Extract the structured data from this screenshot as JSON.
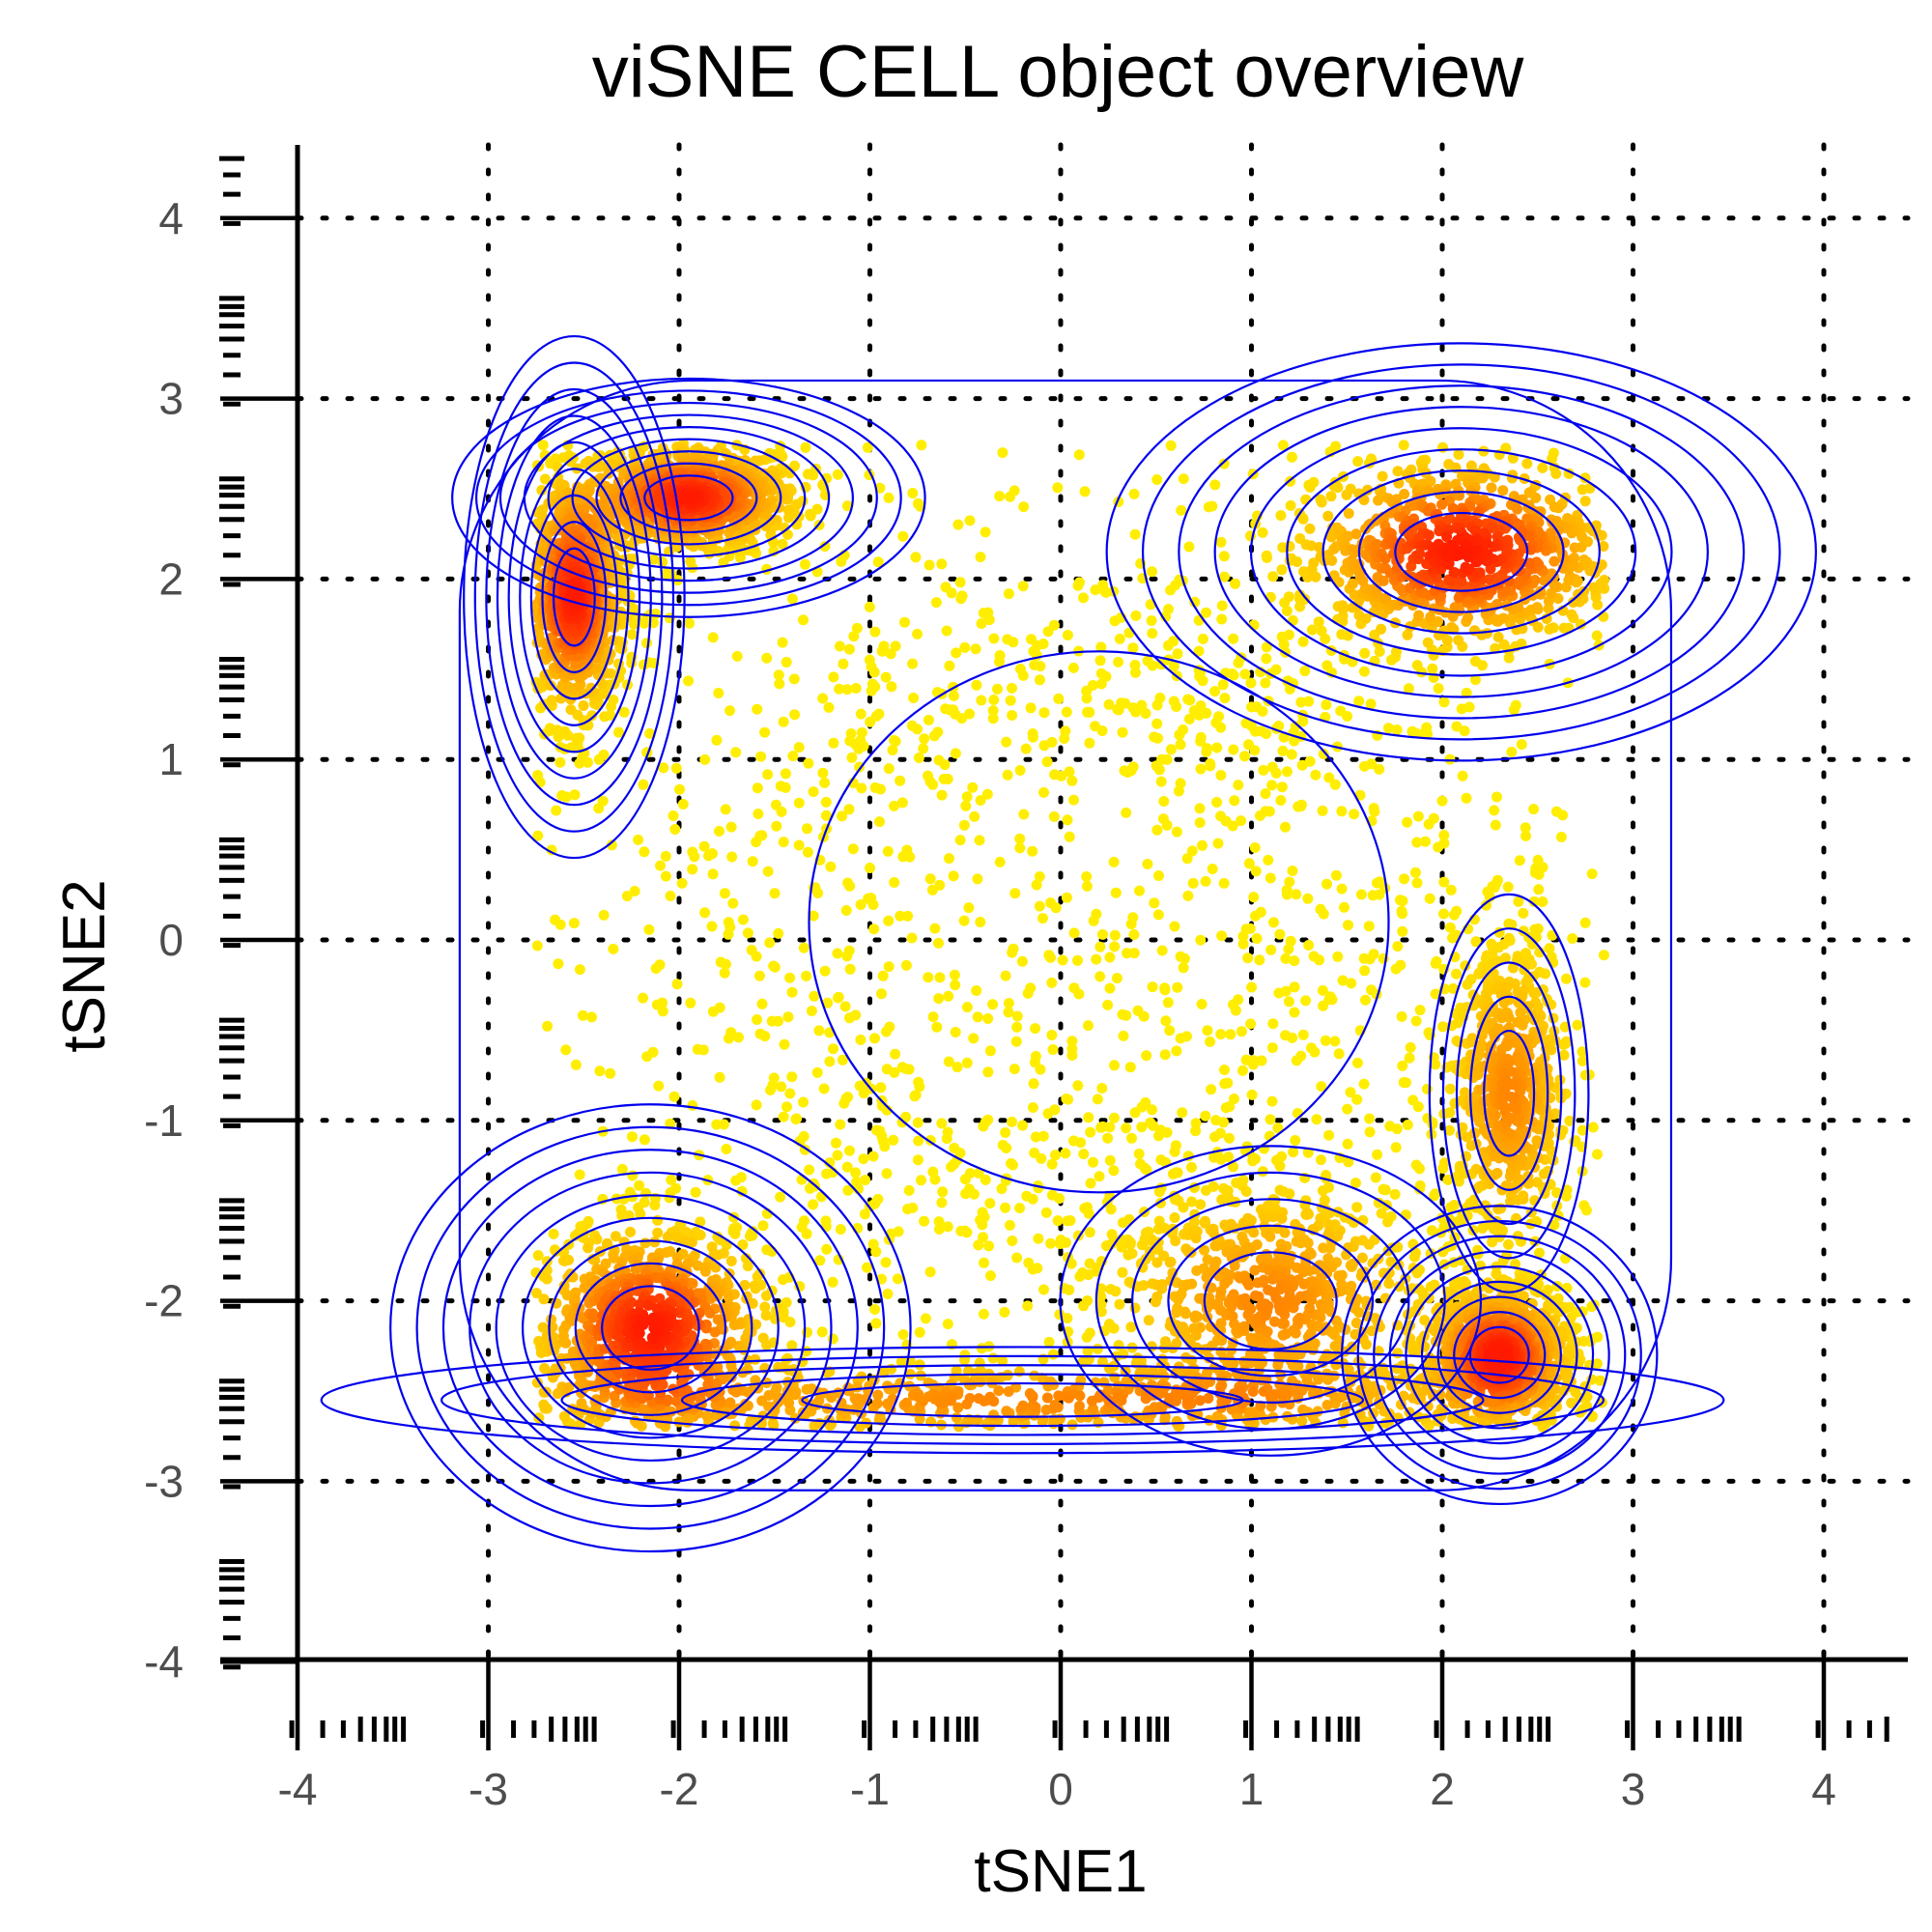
{
  "chart_data": {
    "type": "scatter",
    "title": "viSNE CELL object overview",
    "xlabel": "tSNE1",
    "ylabel": "tSNE2",
    "xlim": [
      -4.3,
      4.3
    ],
    "ylim": [
      -4.2,
      4.35
    ],
    "x_ticks": [
      -4,
      -3,
      -2,
      -1,
      0,
      1,
      2,
      3,
      4
    ],
    "y_ticks": [
      -4,
      -3,
      -2,
      -1,
      0,
      1,
      2,
      3,
      4
    ],
    "x_tick_labels": [
      "-4",
      "-3",
      "-2",
      "-1",
      "0",
      "1",
      "2",
      "3",
      "4"
    ],
    "y_tick_labels": [
      "-4",
      "-3",
      "-2",
      "-1",
      "0",
      "1",
      "2",
      "3",
      "4"
    ],
    "grid": "dotted major gridlines",
    "point_colors": {
      "low_density": "#ffee00",
      "mid_density": "#ff9900",
      "high_density": "#ff1a00"
    },
    "contour_color": "#0000ee",
    "clusters": [
      {
        "x": -1.95,
        "y": 2.45,
        "sx": 0.3,
        "sy": 0.16,
        "density": "high"
      },
      {
        "x": -2.55,
        "y": 1.9,
        "sx": 0.14,
        "sy": 0.35,
        "density": "high"
      },
      {
        "x": 2.1,
        "y": 2.15,
        "sx": 0.45,
        "sy": 0.28,
        "density": "high"
      },
      {
        "x": 2.35,
        "y": -0.85,
        "sx": 0.17,
        "sy": 0.45,
        "density": "mid"
      },
      {
        "x": 2.3,
        "y": -2.3,
        "sx": 0.2,
        "sy": 0.2,
        "density": "high"
      },
      {
        "x": -2.15,
        "y": -2.15,
        "sx": 0.33,
        "sy": 0.3,
        "density": "high"
      },
      {
        "x": 1.1,
        "y": -2.0,
        "sx": 0.45,
        "sy": 0.35,
        "density": "mid"
      },
      {
        "x": -0.2,
        "y": -2.55,
        "sx": 1.5,
        "sy": 0.12,
        "density": "mid"
      },
      {
        "x": 0.0,
        "y": 0.0,
        "sx": 1.5,
        "sy": 1.5,
        "density": "low"
      }
    ]
  }
}
